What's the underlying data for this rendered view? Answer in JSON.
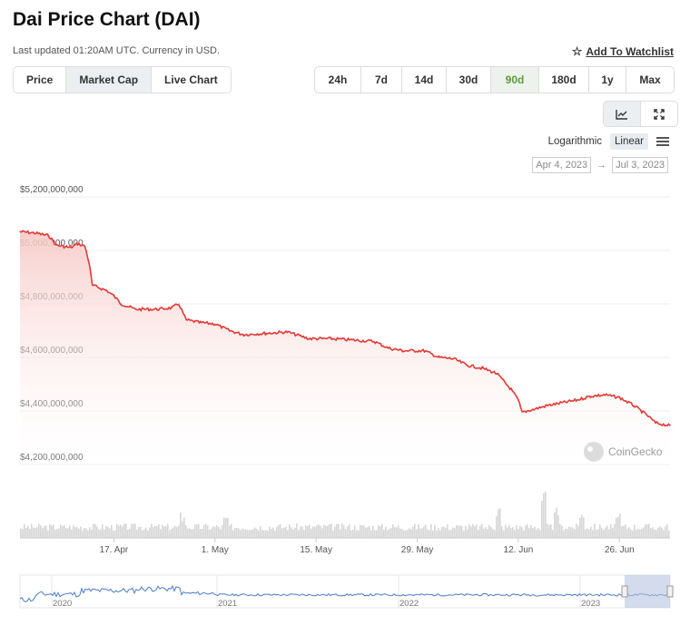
{
  "header": {
    "title": "Dai Price Chart (DAI)",
    "updated": "Last updated 01:20AM UTC. Currency in USD.",
    "watchlist": "Add To Watchlist"
  },
  "view_tabs": [
    "Price",
    "Market Cap",
    "Live Chart"
  ],
  "view_active": 1,
  "range_tabs": [
    "24h",
    "7d",
    "14d",
    "30d",
    "90d",
    "180d",
    "1y",
    "Max"
  ],
  "range_active": 4,
  "scale": {
    "log": "Logarithmic",
    "linear": "Linear",
    "active": "linear"
  },
  "date_range": {
    "from": "Apr 4, 2023",
    "arrow": "→",
    "to": "Jul 3, 2023"
  },
  "watermark": "CoinGecko",
  "colors": {
    "line": "#e53935",
    "area_top": "#f6c9c6",
    "nav_line": "#4a7cc9",
    "accent_green": "#5d9c3b"
  },
  "chart_data": {
    "type": "line",
    "title": "",
    "ylabel": "",
    "xlabel": "",
    "ylim": [
      4200000000,
      5200000000
    ],
    "y_ticks": [
      4200000000,
      4400000000,
      4600000000,
      4800000000,
      5000000000,
      5200000000
    ],
    "y_tick_labels": [
      "$4,200,000,000",
      "$4,400,000,000",
      "$4,600,000,000",
      "$4,800,000,000",
      "$5,000,000,000",
      "$5,200,000,000"
    ],
    "x_tick_labels": [
      "17. Apr",
      "1. May",
      "15. May",
      "29. May",
      "12. Jun",
      "26. Jun"
    ],
    "x_tick_dates": [
      "2023-04-17",
      "2023-05-01",
      "2023-05-15",
      "2023-05-29",
      "2023-06-12",
      "2023-06-26"
    ],
    "x_range": [
      "2023-04-04",
      "2023-07-03"
    ],
    "grid": true,
    "series": [
      {
        "values": [
          [
            "2023-04-04",
            5070000000
          ],
          [
            "2023-04-06",
            5065000000
          ],
          [
            "2023-04-08",
            5055000000
          ],
          [
            "2023-04-09",
            5020000000
          ],
          [
            "2023-04-11",
            5010000000
          ],
          [
            "2023-04-12",
            5025000000
          ],
          [
            "2023-04-13",
            5015000000
          ],
          [
            "2023-04-13.6",
            4950000000
          ],
          [
            "2023-04-14",
            4870000000
          ],
          [
            "2023-04-16",
            4850000000
          ],
          [
            "2023-04-17",
            4830000000
          ],
          [
            "2023-04-18",
            4800000000
          ],
          [
            "2023-04-20",
            4780000000
          ],
          [
            "2023-04-23",
            4780000000
          ],
          [
            "2023-04-25",
            4785000000
          ],
          [
            "2023-04-26",
            4800000000
          ],
          [
            "2023-04-27",
            4740000000
          ],
          [
            "2023-04-29",
            4730000000
          ],
          [
            "2023-05-01",
            4725000000
          ],
          [
            "2023-05-03",
            4700000000
          ],
          [
            "2023-05-05",
            4685000000
          ],
          [
            "2023-05-08",
            4690000000
          ],
          [
            "2023-05-11",
            4695000000
          ],
          [
            "2023-05-14",
            4670000000
          ],
          [
            "2023-05-17",
            4670000000
          ],
          [
            "2023-05-20",
            4665000000
          ],
          [
            "2023-05-23",
            4660000000
          ],
          [
            "2023-05-25",
            4635000000
          ],
          [
            "2023-05-27",
            4625000000
          ],
          [
            "2023-05-30",
            4625000000
          ],
          [
            "2023-06-01",
            4600000000
          ],
          [
            "2023-06-03",
            4595000000
          ],
          [
            "2023-06-05",
            4570000000
          ],
          [
            "2023-06-07",
            4560000000
          ],
          [
            "2023-06-09",
            4540000000
          ],
          [
            "2023-06-11",
            4480000000
          ],
          [
            "2023-06-12",
            4440000000
          ],
          [
            "2023-06-12.5",
            4395000000
          ],
          [
            "2023-06-14",
            4405000000
          ],
          [
            "2023-06-16",
            4420000000
          ],
          [
            "2023-06-18",
            4430000000
          ],
          [
            "2023-06-20",
            4440000000
          ],
          [
            "2023-06-22",
            4455000000
          ],
          [
            "2023-06-24",
            4460000000
          ],
          [
            "2023-06-26",
            4450000000
          ],
          [
            "2023-06-28",
            4420000000
          ],
          [
            "2023-06-30",
            4380000000
          ],
          [
            "2023-07-01",
            4355000000
          ],
          [
            "2023-07-03",
            4345000000
          ]
        ]
      }
    ],
    "volume_note": "volume bars below price",
    "navigator": {
      "x_tick_labels": [
        "2020",
        "2021",
        "2022",
        "2023"
      ]
    }
  }
}
